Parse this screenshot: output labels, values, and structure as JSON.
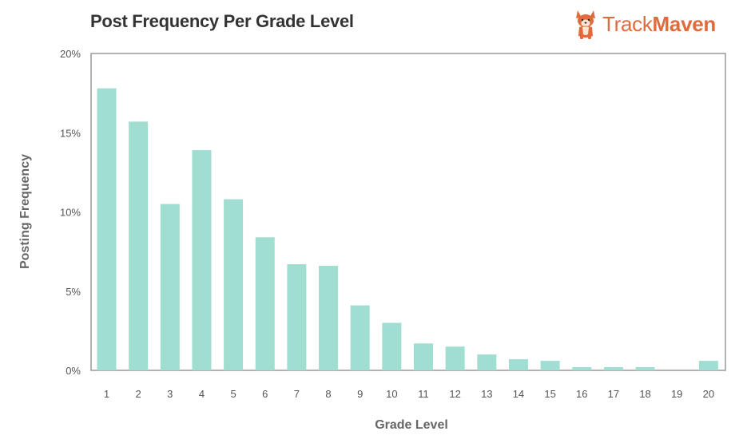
{
  "header": {
    "title": "Post Frequency Per Grade Level",
    "brand_part1": "Track",
    "brand_part2": "Maven",
    "brand_color": "#e26a3b",
    "brand_icon": "corgi-dog-logo-icon"
  },
  "chart_data": {
    "type": "bar",
    "title": "Post Frequency Per Grade Level",
    "xlabel": "Grade Level",
    "ylabel": "Posting Frequency",
    "categories": [
      "1",
      "2",
      "3",
      "4",
      "5",
      "6",
      "7",
      "8",
      "9",
      "10",
      "11",
      "12",
      "13",
      "14",
      "15",
      "16",
      "17",
      "18",
      "19",
      "20"
    ],
    "values": [
      17.8,
      15.7,
      10.5,
      13.9,
      10.8,
      8.4,
      6.7,
      6.6,
      4.1,
      3.0,
      1.7,
      1.5,
      1.0,
      0.7,
      0.6,
      0.2,
      0.2,
      0.2,
      0.0,
      0.6
    ],
    "unit": "%",
    "ylim": [
      0,
      20
    ],
    "yticks": [
      "0%",
      "5%",
      "10%",
      "15%",
      "20%"
    ],
    "bar_color": "#9fded0",
    "grid": false,
    "legend": "none"
  }
}
